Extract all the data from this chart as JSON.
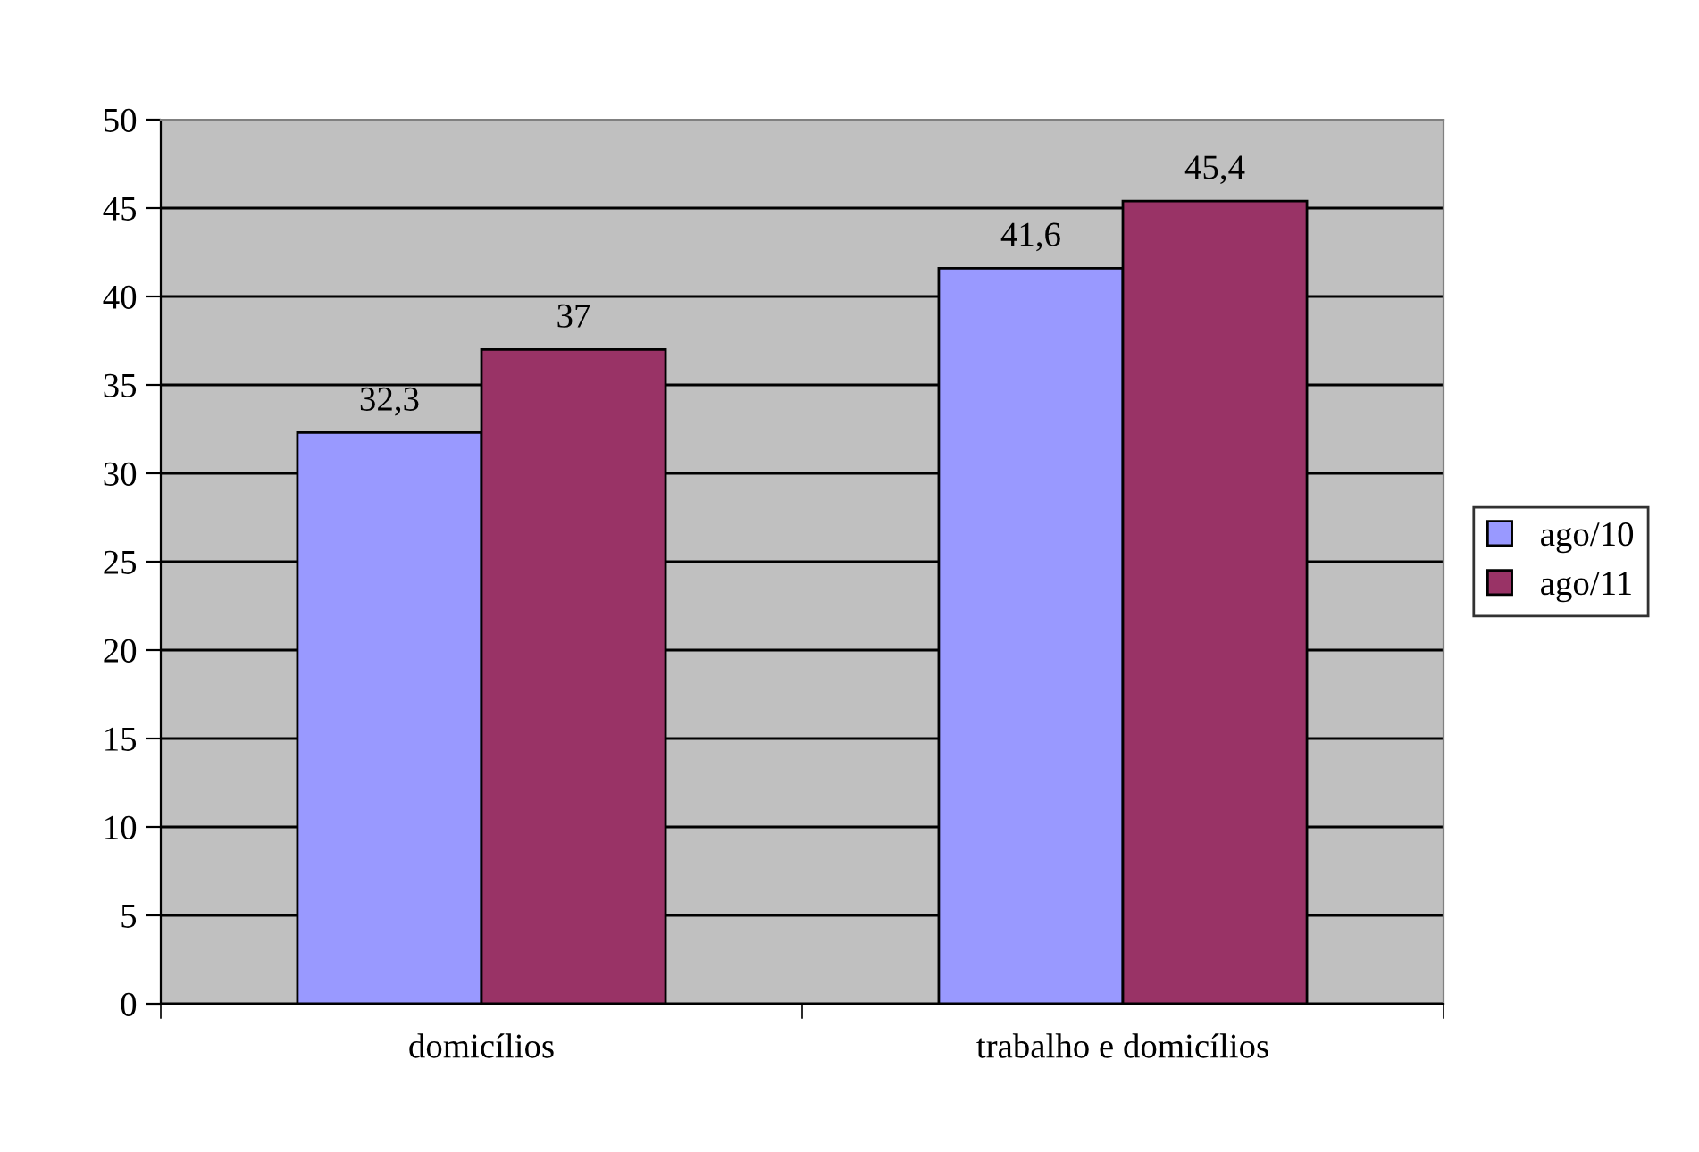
{
  "chart_data": {
    "type": "bar",
    "categories": [
      "domicílios",
      "trabalho e domicílios"
    ],
    "series": [
      {
        "name": "ago/10",
        "color": "#9999ff",
        "values": [
          32.3,
          41.6
        ],
        "value_labels": [
          "32,3",
          "41,6"
        ]
      },
      {
        "name": "ago/11",
        "color": "#993366",
        "values": [
          37,
          45.4
        ],
        "value_labels": [
          "37",
          "45,4"
        ]
      }
    ],
    "ylim": [
      0,
      50
    ],
    "yticks": [
      0,
      5,
      10,
      15,
      20,
      25,
      30,
      35,
      40,
      45,
      50
    ],
    "grid": "y",
    "legend": "right"
  }
}
